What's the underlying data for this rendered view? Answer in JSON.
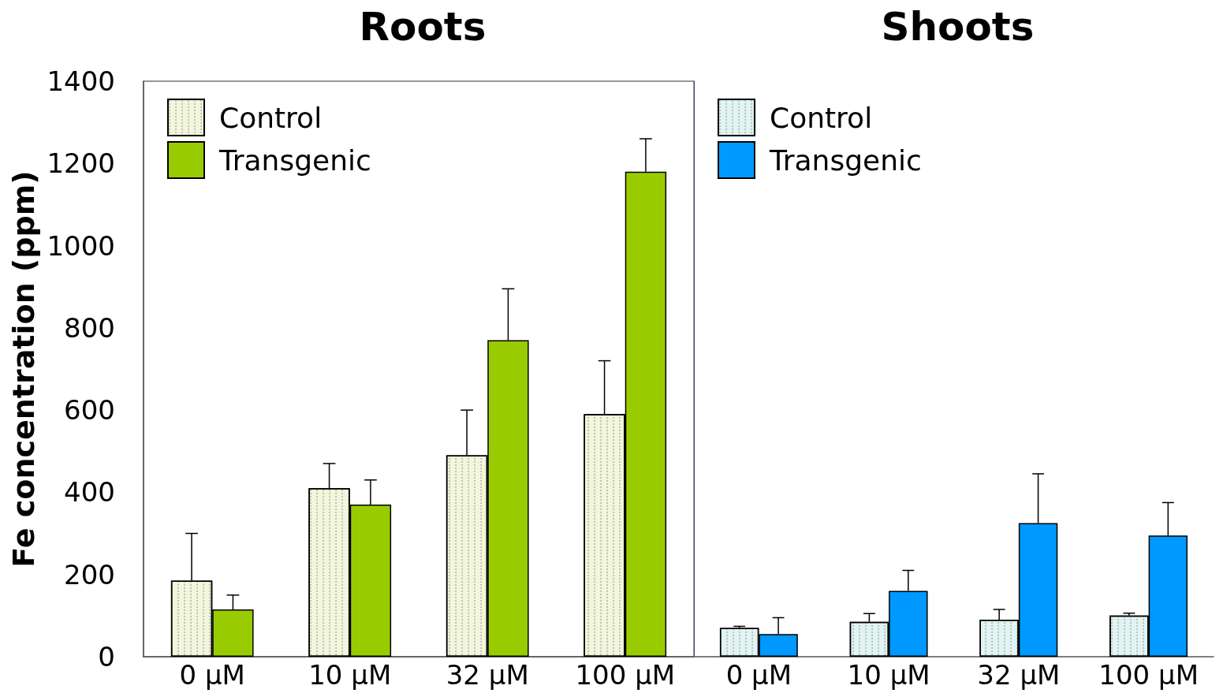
{
  "chart_data": [
    {
      "type": "bar",
      "title": "Roots",
      "ylabel": "Fe concentration (ppm)",
      "categories": [
        "0 μM",
        "10 μM",
        "32 μM",
        "100 μM"
      ],
      "ylim": [
        0,
        1400
      ],
      "yticks": [
        0,
        200,
        400,
        600,
        800,
        1000,
        1200,
        1400
      ],
      "legend": "top left",
      "series": [
        {
          "name": "Control",
          "color": "#f3f5dc",
          "values": [
            185,
            410,
            490,
            590
          ],
          "errors": [
            [
              185,
              300
            ],
            [
              410,
              470
            ],
            [
              490,
              600
            ],
            [
              590,
              720
            ]
          ]
        },
        {
          "name": "Transgenic",
          "color": "#99cc00",
          "values": [
            115,
            370,
            770,
            1180
          ],
          "errors": [
            [
              115,
              150
            ],
            [
              370,
              430
            ],
            [
              770,
              895
            ],
            [
              1180,
              1260
            ]
          ]
        }
      ]
    },
    {
      "type": "bar",
      "title": "Shoots",
      "categories": [
        "0 μM",
        "10 μM",
        "32 μM",
        "100 μM"
      ],
      "ylim": [
        0,
        1400
      ],
      "yticks": [
        0,
        200,
        400,
        600,
        800,
        1000,
        1200,
        1400
      ],
      "tick_labels": "x",
      "legend": "top left",
      "series": [
        {
          "name": "Control",
          "color": "#e3f2f2",
          "values": [
            70,
            85,
            90,
            100
          ],
          "errors": [
            [
              70,
              74
            ],
            [
              85,
              105
            ],
            [
              90,
              115
            ],
            [
              100,
              106
            ]
          ]
        },
        {
          "name": "Transgenic",
          "color": "#0099ff",
          "values": [
            55,
            160,
            325,
            295
          ],
          "errors": [
            [
              55,
              95
            ],
            [
              160,
              210
            ],
            [
              325,
              445
            ],
            [
              295,
              375
            ]
          ]
        }
      ]
    }
  ]
}
